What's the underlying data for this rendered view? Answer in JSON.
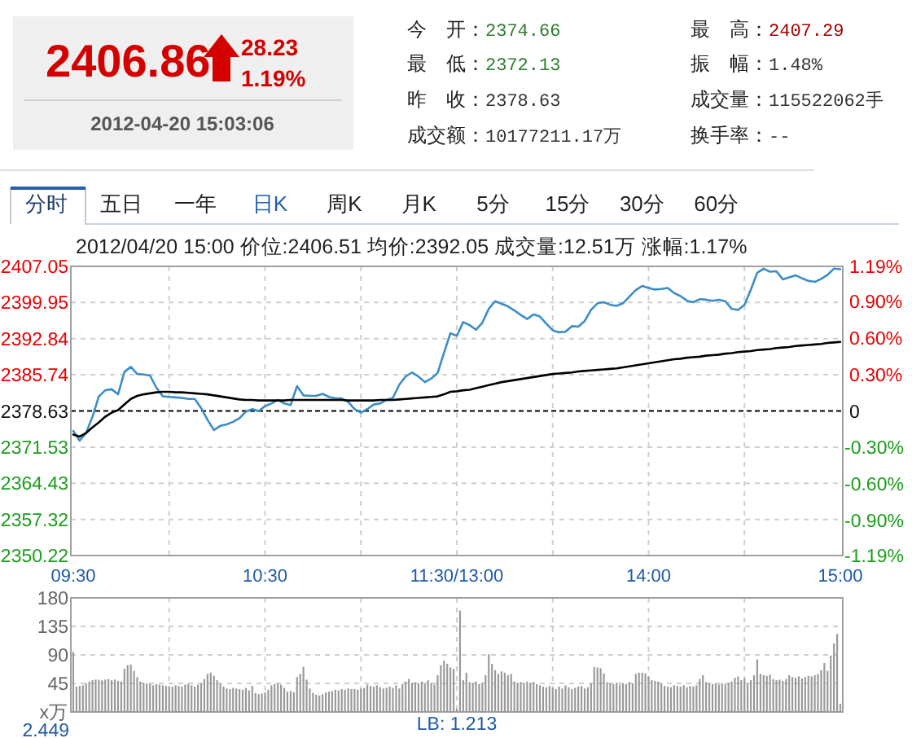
{
  "chart_data": [
    {
      "type": "other",
      "annotations": [
        "2406.86",
        "28.23",
        "1.19%",
        "2012-04-20 15:03:06",
        "今　开：",
        "2374.66",
        "最　高：",
        "2407.29",
        "最　低：",
        "2372.13",
        "振　幅：",
        "1.48%",
        "昨　收：",
        "2378.63",
        "成交量：",
        "115522062手",
        "成交额：",
        "10177211.17万",
        "换手率：",
        "--"
      ]
    },
    {
      "type": "other",
      "annotations": [
        "分时",
        "五日",
        "一年",
        "日K",
        "周K",
        "月K",
        "5分",
        "15分",
        "30分",
        "60分"
      ]
    },
    {
      "type": "line",
      "title": "2012/04/20 15:00 价位:2406.51 均价:2392.05 成交量:12.51万 涨幅:1.17%",
      "categories": [
        "09:30",
        null,
        null,
        null,
        null,
        null,
        null,
        null,
        null,
        null,
        null,
        null,
        null,
        null,
        null,
        null,
        null,
        null,
        null,
        null,
        null,
        null,
        null,
        null,
        null,
        null,
        null,
        null,
        null,
        null,
        "10:30",
        null,
        null,
        null,
        null,
        null,
        null,
        null,
        null,
        null,
        null,
        null,
        null,
        null,
        null,
        null,
        null,
        null,
        null,
        null,
        null,
        null,
        null,
        null,
        null,
        null,
        null,
        null,
        null,
        null,
        "11:30/13:00",
        null,
        null,
        null,
        null,
        null,
        null,
        null,
        null,
        null,
        null,
        null,
        null,
        null,
        null,
        null,
        null,
        null,
        null,
        null,
        null,
        null,
        null,
        null,
        null,
        null,
        null,
        null,
        null,
        null,
        "14:00",
        null,
        null,
        null,
        null,
        null,
        null,
        null,
        null,
        null,
        null,
        null,
        null,
        null,
        null,
        null,
        null,
        null,
        null,
        null,
        null,
        null,
        null,
        null,
        null,
        null,
        null,
        null,
        null,
        null,
        "15:00"
      ],
      "ylim": [
        2350.22,
        2407.05
      ],
      "yticks": [
        2350.22,
        2357.32,
        2364.43,
        2371.53,
        2378.63,
        2385.74,
        2392.84,
        2399.95,
        2407.05
      ],
      "y2lim": [
        -1.19,
        1.19
      ],
      "y2ticks": [
        {
          "value": -1.19,
          "label": "-1.19%"
        },
        {
          "value": -0.9,
          "label": "-0.90%"
        },
        {
          "value": -0.6,
          "label": "-0.60%"
        },
        {
          "value": -0.3,
          "label": "-0.30%"
        },
        0,
        {
          "value": 0.3,
          "label": "0.30%"
        },
        {
          "value": 0.6,
          "label": "0.60%"
        },
        {
          "value": 0.9,
          "label": "0.90%"
        },
        {
          "value": 1.19,
          "label": "1.19%"
        }
      ],
      "grid": true,
      "ref_lines": [
        {
          "axis": "y",
          "value": 2378.63,
          "color": "#000000",
          "line_style": "dashed"
        }
      ],
      "series": [
        {
          "color": "#3b8dc8",
          "values": [
            2374.7,
            2372.8,
            2374.3,
            2377.5,
            2381.5,
            2382.7,
            2382.9,
            2381.9,
            2386.3,
            2387.3,
            2385.9,
            2385.8,
            2385.6,
            2383.2,
            2381.5,
            2381.4,
            2381.3,
            2381.2,
            2381.0,
            2381.0,
            2379.2,
            2376.9,
            2374.9,
            2375.7,
            2376.0,
            2376.5,
            2377.2,
            2378.5,
            2379.0,
            2378.6,
            2379.6,
            2380.1,
            2380.8,
            2380.1,
            2379.8,
            2383.5,
            2381.7,
            2381.6,
            2381.6,
            2382.0,
            2381.4,
            2381.1,
            2381.1,
            2380.4,
            2379.0,
            2378.3,
            2379.0,
            2379.9,
            2380.1,
            2380.8,
            2381.2,
            2383.8,
            2385.4,
            2386.2,
            2385.4,
            2384.3,
            2385.0,
            2386.1,
            2390.1,
            2393.9,
            2393.4,
            2396.1,
            2395.5,
            2394.6,
            2396.0,
            2398.7,
            2400.2,
            2399.7,
            2399.2,
            2398.4,
            2397.5,
            2396.7,
            2397.6,
            2397.2,
            2395.8,
            2394.5,
            2394.1,
            2394.2,
            2395.3,
            2395.2,
            2396.3,
            2398.5,
            2399.8,
            2400.0,
            2399.5,
            2399.3,
            2399.8,
            2401.1,
            2402.4,
            2403.2,
            2402.8,
            2402.5,
            2402.6,
            2402.8,
            2401.8,
            2401.2,
            2400.3,
            2400.0,
            2400.6,
            2400.5,
            2400.3,
            2400.5,
            2400.2,
            2398.7,
            2398.5,
            2399.5,
            2402.5,
            2405.8,
            2406.6,
            2406.0,
            2406.1,
            2404.5,
            2404.9,
            2405.3,
            2404.7,
            2404.2,
            2404.0,
            2404.6,
            2405.4,
            2406.6,
            2406.5
          ]
        },
        {
          "color": "#000000",
          "values": [
            2374.0,
            2373.6,
            2374.3,
            2375.4,
            2376.4,
            2377.5,
            2378.3,
            2378.8,
            2379.9,
            2381.0,
            2381.6,
            2381.9,
            2382.1,
            2382.3,
            2382.4,
            2382.4,
            2382.3,
            2382.3,
            2382.2,
            2382.1,
            2382.0,
            2381.9,
            2381.7,
            2381.5,
            2381.3,
            2381.1,
            2380.9,
            2380.8,
            2380.8,
            2380.7,
            2380.7,
            2380.7,
            2380.7,
            2380.7,
            2380.8,
            2380.8,
            2380.8,
            2380.8,
            2380.8,
            2380.8,
            2380.8,
            2380.8,
            2380.8,
            2380.7,
            2380.7,
            2380.7,
            2380.7,
            2380.7,
            2380.8,
            2380.8,
            2380.8,
            2380.9,
            2381.0,
            2381.1,
            2381.2,
            2381.3,
            2381.4,
            2381.5,
            2381.9,
            2382.4,
            2382.5,
            2382.7,
            2382.8,
            2383.1,
            2383.4,
            2383.7,
            2384.0,
            2384.3,
            2384.5,
            2384.7,
            2384.9,
            2385.1,
            2385.3,
            2385.5,
            2385.7,
            2385.9,
            2386.0,
            2386.1,
            2386.2,
            2386.4,
            2386.5,
            2386.6,
            2386.7,
            2386.8,
            2386.9,
            2387.0,
            2387.2,
            2387.4,
            2387.6,
            2387.8,
            2388.0,
            2388.2,
            2388.4,
            2388.6,
            2388.8,
            2388.9,
            2389.1,
            2389.2,
            2389.3,
            2389.5,
            2389.6,
            2389.7,
            2389.9,
            2390.0,
            2390.2,
            2390.3,
            2390.4,
            2390.6,
            2390.7,
            2390.8,
            2391.0,
            2391.1,
            2391.2,
            2391.4,
            2391.5,
            2391.6,
            2391.7,
            2391.8,
            2392.0,
            2392.1,
            2392.2
          ]
        }
      ]
    },
    {
      "type": "bar",
      "color": "#999999",
      "categories": [
        null,
        null,
        null,
        null,
        null,
        null,
        null,
        null,
        null,
        null,
        null,
        null,
        null,
        null,
        null,
        null,
        null,
        null,
        null,
        null,
        null,
        null,
        null,
        null,
        null,
        null,
        null,
        null,
        null,
        null,
        null,
        null,
        null,
        null,
        null,
        null,
        null,
        null,
        null,
        null,
        null,
        null,
        null,
        null,
        null,
        null,
        null,
        null,
        null,
        null,
        null,
        null,
        null,
        null,
        null,
        null,
        null,
        null,
        null,
        null,
        null,
        null,
        null,
        null,
        null,
        null,
        null,
        null,
        null,
        null,
        null,
        null,
        null,
        null,
        null,
        null,
        null,
        null,
        null,
        null,
        null,
        null,
        null,
        null,
        null,
        null,
        null,
        null,
        null,
        null,
        null,
        null,
        null,
        null,
        null,
        null,
        null,
        null,
        null,
        null,
        null,
        null,
        null,
        null,
        null,
        null,
        null,
        null,
        null,
        null,
        null,
        null,
        null,
        null,
        null,
        null,
        null,
        null,
        null,
        null,
        null,
        null,
        null,
        null,
        null,
        null,
        null,
        null,
        null,
        null,
        null,
        null,
        null,
        null,
        null,
        null,
        null,
        null,
        null,
        null,
        null,
        null,
        null,
        null,
        null,
        null,
        null,
        null,
        null,
        null,
        null,
        null,
        null,
        null,
        null,
        null,
        null,
        null,
        null,
        null,
        null,
        null,
        null,
        null,
        null,
        null,
        null,
        null,
        null,
        null,
        null,
        null,
        null,
        null,
        null,
        null,
        null,
        null,
        null,
        null,
        null,
        null,
        null,
        null,
        null,
        null,
        null,
        null,
        null,
        null,
        null,
        null,
        null,
        null,
        null,
        null,
        null,
        null,
        null,
        null,
        null,
        null,
        null,
        null,
        null,
        null,
        null,
        null,
        null,
        null,
        null,
        null,
        null,
        null,
        null,
        null,
        null,
        null,
        null,
        null,
        null,
        null,
        null,
        null,
        null,
        null,
        null,
        null,
        null,
        null,
        null,
        null,
        null,
        null,
        null,
        null,
        null,
        null,
        null,
        null,
        null
      ],
      "ylim": [
        0,
        180
      ],
      "yticks": [
        {
          "value": 0,
          "label": "x万"
        },
        45,
        90,
        135,
        180
      ],
      "grid": true,
      "annotations": [
        "2.449",
        "LB: 1.213"
      ],
      "values": [
        95,
        40,
        41,
        42,
        45,
        48,
        50,
        51,
        51,
        50,
        51,
        52,
        50,
        51,
        49,
        48,
        68,
        74,
        75,
        65,
        55,
        48,
        46,
        45,
        44,
        42,
        44,
        43,
        42,
        41,
        40,
        40,
        42,
        41,
        40,
        43,
        44,
        42,
        40,
        43,
        45,
        52,
        60,
        62,
        57,
        50,
        44,
        40,
        37,
        36,
        38,
        37,
        36,
        35,
        38,
        34,
        41,
        30,
        28,
        29,
        31,
        35,
        42,
        44,
        45,
        43,
        38,
        32,
        33,
        31,
        55,
        60,
        71,
        51,
        37,
        30,
        27,
        26,
        28,
        31,
        32,
        33,
        35,
        34,
        36,
        35,
        37,
        36,
        36,
        35,
        37,
        38,
        43,
        41,
        40,
        42,
        39,
        37,
        38,
        40,
        38,
        42,
        37,
        44,
        48,
        52,
        46,
        47,
        45,
        48,
        44,
        50,
        46,
        43,
        58,
        74,
        81,
        76,
        70,
        68,
        5,
        160,
        50,
        62,
        47,
        45,
        48,
        44,
        46,
        58,
        91,
        76,
        66,
        60,
        64,
        62,
        58,
        60,
        48,
        46,
        47,
        45,
        48,
        46,
        47,
        44,
        42,
        40,
        39,
        41,
        38,
        36,
        40,
        37,
        42,
        39,
        36,
        38,
        40,
        41,
        37,
        39,
        45,
        71,
        70,
        69,
        61,
        47,
        45,
        44,
        46,
        43,
        45,
        44,
        47,
        45,
        60,
        62,
        62,
        61,
        56,
        50,
        49,
        48,
        45,
        41,
        40,
        39,
        42,
        41,
        40,
        42,
        39,
        41,
        40,
        42,
        52,
        58,
        47,
        45,
        44,
        45,
        43,
        45,
        44,
        46,
        48,
        54,
        56,
        50,
        53,
        44,
        50,
        58,
        83,
        60,
        58,
        57,
        59,
        52,
        50,
        51,
        49,
        52,
        58,
        55,
        54,
        56,
        53,
        55,
        57,
        56,
        58,
        60,
        66,
        77,
        65,
        89,
        108,
        123,
        13
      ]
    }
  ]
}
